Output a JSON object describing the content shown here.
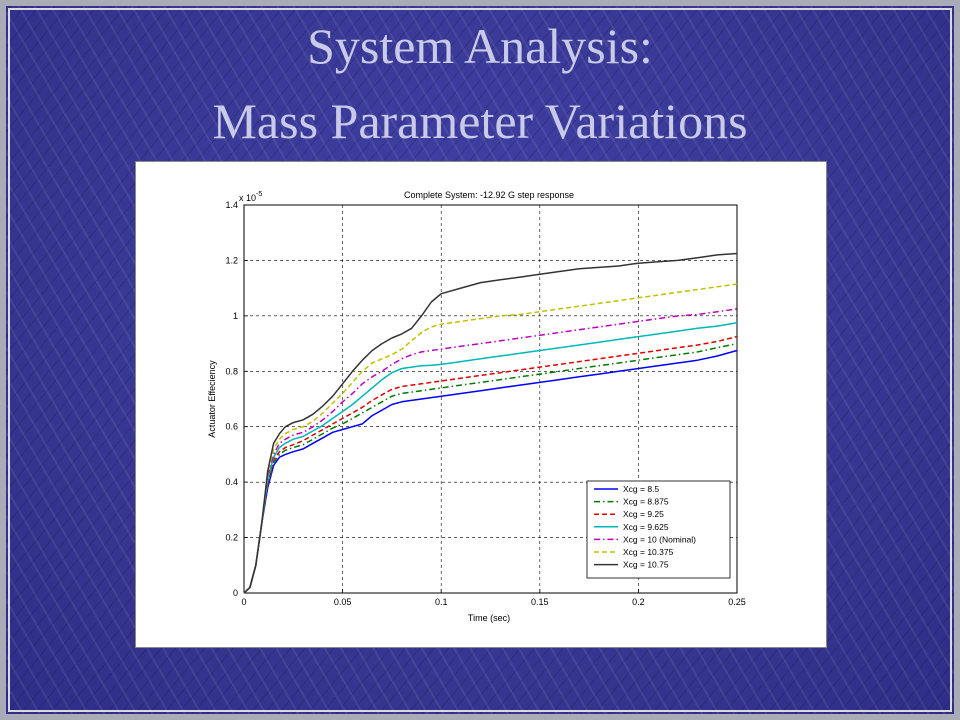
{
  "slide": {
    "title_line1": "System Analysis:",
    "title_line2": "Mass Parameter Variations"
  },
  "chart_data": {
    "type": "line",
    "title": "Complete System: -12.92 G step response",
    "xlabel": "Time (sec)",
    "ylabel": "Actuator Effeciency",
    "y_exponent_label": "x 10",
    "y_exponent": "-5",
    "xlim": [
      0,
      0.25
    ],
    "ylim": [
      0,
      1.4
    ],
    "xticks": [
      "0",
      "0.05",
      "0.1",
      "0.15",
      "0.2",
      "0.25"
    ],
    "yticks": [
      "0",
      "0.2",
      "0.4",
      "0.6",
      "0.8",
      "1",
      "1.2",
      "1.4"
    ],
    "xtick_values": [
      0,
      0.05,
      0.1,
      0.15,
      0.2,
      0.25
    ],
    "ytick_values": [
      0,
      0.2,
      0.4,
      0.6,
      0.8,
      1.0,
      1.2,
      1.4
    ],
    "grid": true,
    "legend_position": "bottom-right",
    "x": [
      0,
      0.003,
      0.006,
      0.009,
      0.012,
      0.015,
      0.018,
      0.021,
      0.025,
      0.03,
      0.035,
      0.04,
      0.045,
      0.05,
      0.055,
      0.06,
      0.065,
      0.07,
      0.075,
      0.08,
      0.085,
      0.09,
      0.095,
      0.1,
      0.11,
      0.12,
      0.13,
      0.14,
      0.15,
      0.16,
      0.17,
      0.18,
      0.19,
      0.2,
      0.21,
      0.22,
      0.23,
      0.24,
      0.25
    ],
    "series": [
      {
        "name": "Xcg = 8.5",
        "color": "#0000ff",
        "dash": "",
        "values": [
          0,
          0.02,
          0.1,
          0.25,
          0.38,
          0.46,
          0.49,
          0.5,
          0.51,
          0.52,
          0.54,
          0.56,
          0.58,
          0.59,
          0.6,
          0.61,
          0.64,
          0.66,
          0.68,
          0.69,
          0.695,
          0.7,
          0.705,
          0.71,
          0.72,
          0.73,
          0.74,
          0.75,
          0.76,
          0.77,
          0.78,
          0.79,
          0.8,
          0.81,
          0.82,
          0.83,
          0.84,
          0.855,
          0.875
        ]
      },
      {
        "name": "Xcg = 8.875",
        "color": "#007a00",
        "dash": "6,3,1.5,3",
        "values": [
          0,
          0.02,
          0.1,
          0.25,
          0.39,
          0.47,
          0.5,
          0.515,
          0.525,
          0.535,
          0.555,
          0.575,
          0.595,
          0.61,
          0.63,
          0.65,
          0.67,
          0.69,
          0.71,
          0.72,
          0.725,
          0.73,
          0.735,
          0.74,
          0.75,
          0.76,
          0.77,
          0.78,
          0.79,
          0.8,
          0.81,
          0.82,
          0.83,
          0.84,
          0.85,
          0.86,
          0.87,
          0.885,
          0.9
        ]
      },
      {
        "name": "Xcg = 9.25",
        "color": "#e00000",
        "dash": "5,3",
        "values": [
          0,
          0.02,
          0.1,
          0.25,
          0.4,
          0.48,
          0.51,
          0.525,
          0.535,
          0.55,
          0.57,
          0.59,
          0.61,
          0.63,
          0.65,
          0.67,
          0.695,
          0.715,
          0.735,
          0.745,
          0.75,
          0.755,
          0.76,
          0.765,
          0.775,
          0.785,
          0.795,
          0.805,
          0.815,
          0.825,
          0.835,
          0.845,
          0.855,
          0.865,
          0.875,
          0.885,
          0.895,
          0.908,
          0.925
        ]
      },
      {
        "name": "Xcg = 9.625",
        "color": "#00b8b8",
        "dash": "",
        "values": [
          0,
          0.02,
          0.1,
          0.25,
          0.41,
          0.49,
          0.525,
          0.54,
          0.555,
          0.565,
          0.585,
          0.605,
          0.63,
          0.655,
          0.68,
          0.71,
          0.74,
          0.77,
          0.795,
          0.81,
          0.815,
          0.82,
          0.822,
          0.825,
          0.835,
          0.845,
          0.855,
          0.865,
          0.875,
          0.885,
          0.895,
          0.905,
          0.915,
          0.925,
          0.935,
          0.945,
          0.955,
          0.963,
          0.975
        ]
      },
      {
        "name": "Xcg = 10 (Nominal)",
        "color": "#c000c0",
        "dash": "6,3,1.5,3",
        "values": [
          0,
          0.02,
          0.1,
          0.25,
          0.42,
          0.5,
          0.54,
          0.555,
          0.57,
          0.58,
          0.6,
          0.625,
          0.655,
          0.69,
          0.72,
          0.755,
          0.78,
          0.8,
          0.825,
          0.845,
          0.86,
          0.87,
          0.875,
          0.88,
          0.89,
          0.9,
          0.91,
          0.92,
          0.93,
          0.94,
          0.95,
          0.96,
          0.97,
          0.98,
          0.99,
          1.0,
          1.005,
          1.015,
          1.025
        ]
      },
      {
        "name": "Xcg = 10.375",
        "color": "#c0c000",
        "dash": "5,3",
        "values": [
          0,
          0.02,
          0.1,
          0.25,
          0.43,
          0.52,
          0.555,
          0.575,
          0.59,
          0.6,
          0.62,
          0.65,
          0.685,
          0.72,
          0.76,
          0.8,
          0.83,
          0.845,
          0.86,
          0.88,
          0.91,
          0.94,
          0.96,
          0.97,
          0.98,
          0.99,
          1.0,
          1.005,
          1.015,
          1.025,
          1.035,
          1.045,
          1.055,
          1.065,
          1.075,
          1.085,
          1.095,
          1.105,
          1.115
        ]
      },
      {
        "name": "Xcg = 10.75",
        "color": "#333333",
        "dash": "",
        "values": [
          0,
          0.02,
          0.1,
          0.25,
          0.44,
          0.54,
          0.575,
          0.6,
          0.615,
          0.625,
          0.645,
          0.675,
          0.71,
          0.755,
          0.8,
          0.84,
          0.875,
          0.9,
          0.92,
          0.935,
          0.955,
          1.0,
          1.05,
          1.08,
          1.1,
          1.12,
          1.13,
          1.14,
          1.15,
          1.16,
          1.17,
          1.175,
          1.18,
          1.19,
          1.195,
          1.2,
          1.21,
          1.22,
          1.225
        ]
      }
    ]
  }
}
